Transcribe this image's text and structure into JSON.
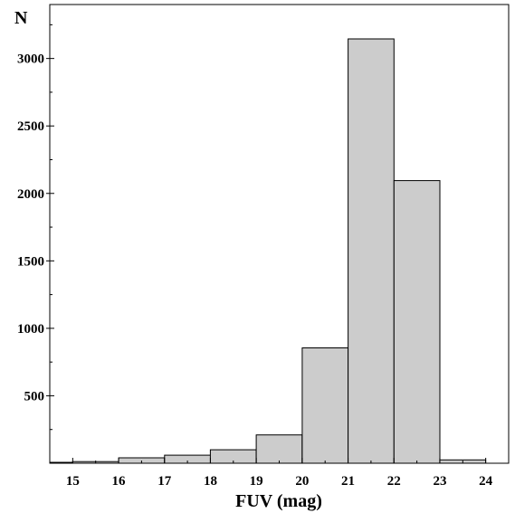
{
  "chart_data": {
    "type": "bar",
    "subtype": "histogram",
    "xlabel": "FUV (mag)",
    "ylabel": "N",
    "bin_edges": [
      14.5,
      15,
      16,
      17,
      18,
      19,
      20,
      21,
      22,
      23,
      24
    ],
    "values": [
      5,
      12,
      40,
      60,
      100,
      210,
      855,
      3145,
      2095,
      25
    ],
    "x_ticks": [
      15,
      16,
      17,
      18,
      19,
      20,
      21,
      22,
      23,
      24
    ],
    "y_ticks": [
      500,
      1000,
      1500,
      2000,
      2500,
      3000
    ],
    "xlim": [
      14.5,
      24.5
    ],
    "ylim": [
      0,
      3400
    ],
    "grid": false,
    "legend": "none",
    "bar_fill": "#cccccc",
    "bar_edge": "#000000"
  }
}
